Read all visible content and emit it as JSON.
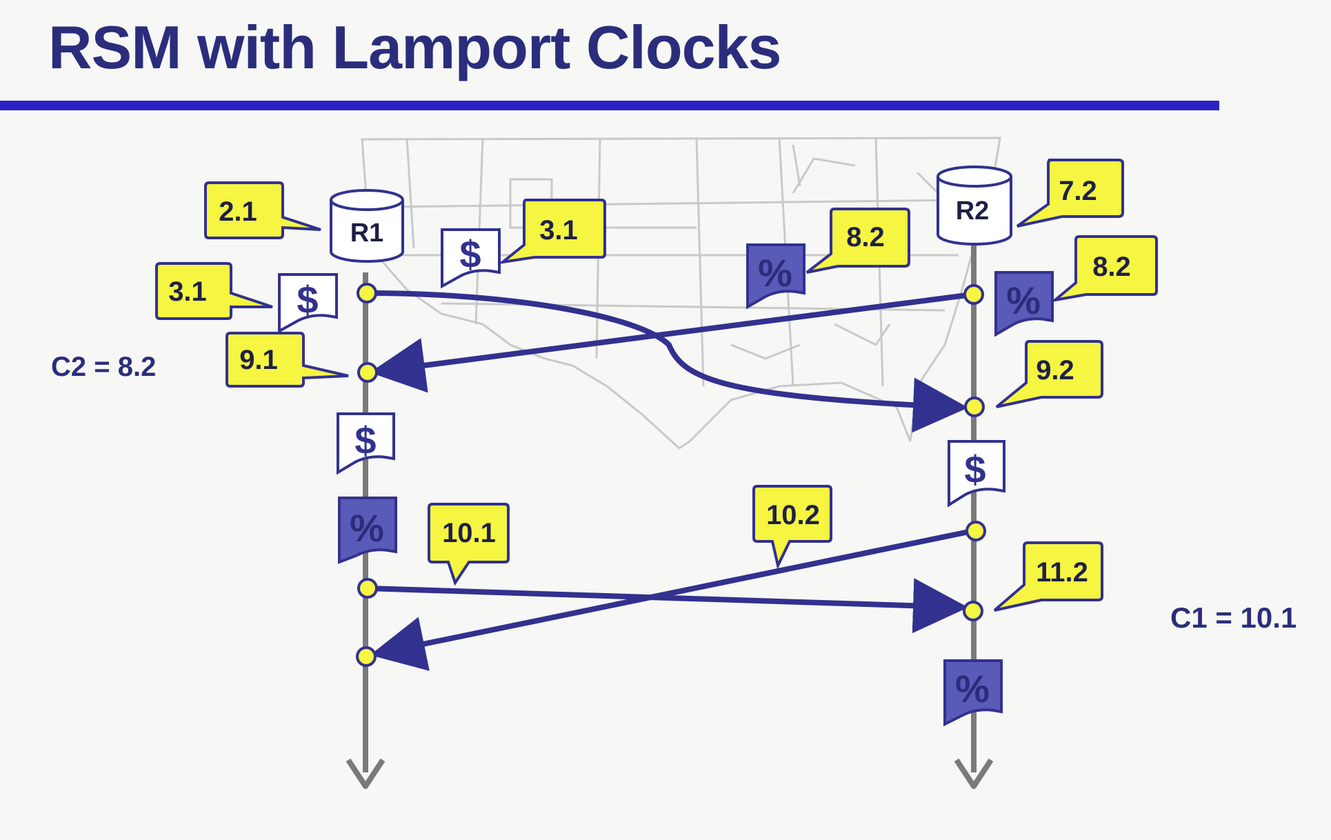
{
  "title": "RSM with Lamport Clocks",
  "colors": {
    "title": "#2b2d7c",
    "rule": "#2a22c4",
    "message_arrow": "#32318f",
    "timeline": "#7a7a7a",
    "bubble_fill": "#f5f542",
    "event_dot_fill": "#f5f542",
    "doc_dark_fill": "#5a5ab8",
    "map_lines": "#c9c9c9"
  },
  "replicas": {
    "r1": "R1",
    "r2": "R2"
  },
  "clock_states": {
    "c2": "C2 = 8.2",
    "c1": "C1 = 10.1"
  },
  "timestamps": {
    "r1_init": "2.1",
    "r2_init": "7.2",
    "doc_dollar_top": "3.1",
    "r1_dollar": "3.1",
    "doc_percent_top": "8.2",
    "r2_percent": "8.2",
    "r1_recv": "9.1",
    "r2_recv": "9.2",
    "r1_send2": "10.1",
    "r2_send2": "10.2",
    "r2_recv2": "11.2"
  },
  "documents": {
    "dollar": "$",
    "percent": "%"
  },
  "icons": [
    "database-icon",
    "dollar-document-icon",
    "percent-document-icon",
    "map-outline",
    "arrow-down-icon"
  ]
}
